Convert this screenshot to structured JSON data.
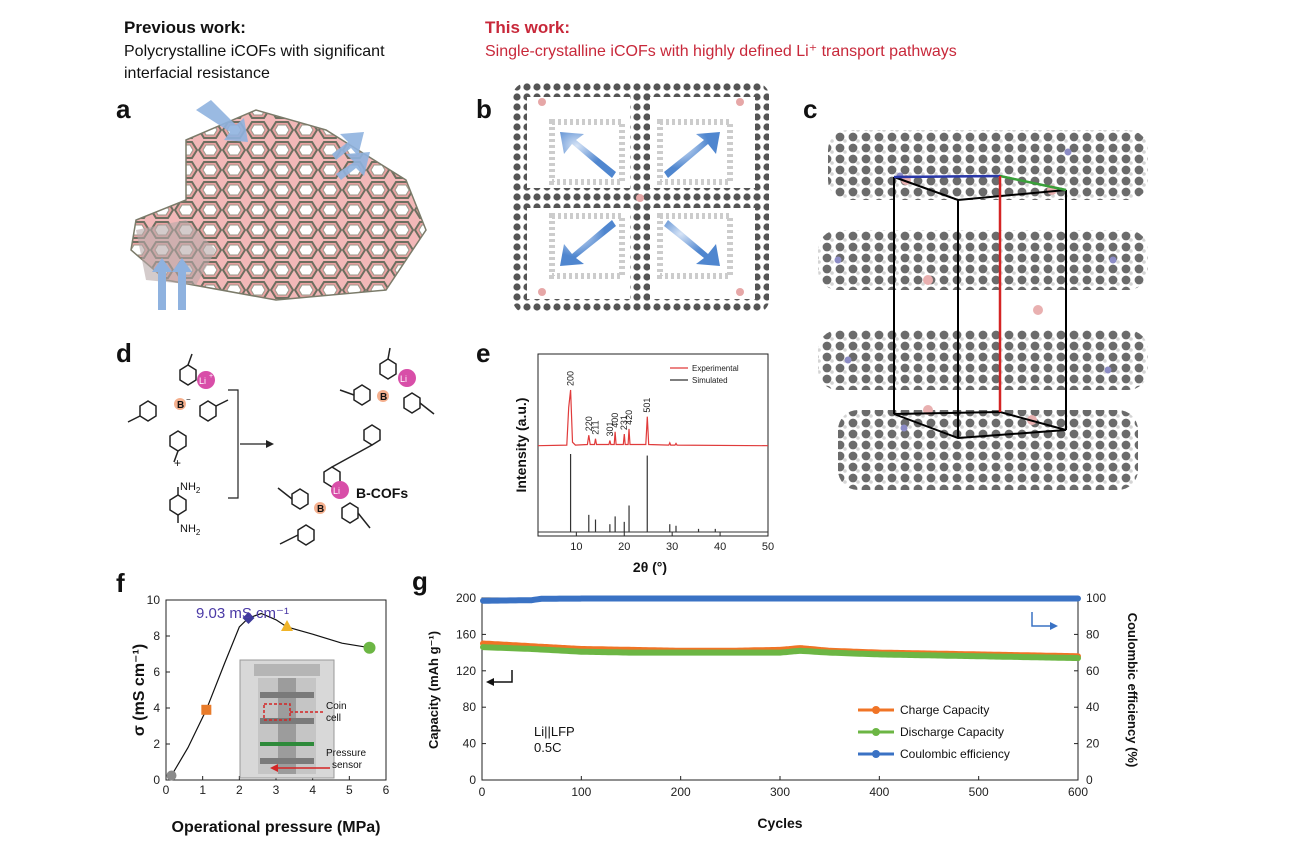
{
  "header": {
    "previous_title": "Previous work:",
    "previous_line1": "Polycrystalline iCOFs with significant",
    "previous_line2": "interfacial resistance",
    "this_title": "This work:",
    "this_desc": "Single-crystalline iCOFs with highly defined Li⁺ transport pathways"
  },
  "panel_labels": {
    "a": "a",
    "b": "b",
    "c": "c",
    "d": "d",
    "e": "e",
    "f": "f",
    "g": "g"
  },
  "panel_d": {
    "li": "Li",
    "li_sup": "+",
    "boron": "B",
    "boron_sup": "−",
    "plus": "+",
    "nh2": "NH",
    "nh2_sub": "2",
    "product": "B-COFs"
  },
  "colors": {
    "experimental": "#e03b3b",
    "simulated": "#333333",
    "charge": "#f07426",
    "discharge": "#6cb644",
    "ce": "#3a72c4",
    "peak_marker": "#3e3b9a",
    "peak_text": "#4b3aa6",
    "square_marker": "#e87b2a",
    "triangle_marker": "#f0b428",
    "arrow_red": "#d42424"
  },
  "chart_data": [
    {
      "id": "e",
      "type": "line",
      "xlabel": "2θ (°)",
      "ylabel": "Intensity (a.u.)",
      "xlim": [
        2,
        50
      ],
      "xticks": [
        10,
        20,
        30,
        40,
        50
      ],
      "legend": [
        "Experimental",
        "Simulated"
      ],
      "series": [
        {
          "name": "Experimental",
          "x": [
            2,
            8.0,
            8.4,
            8.8,
            9.2,
            9.8,
            12.3,
            12.6,
            12.9,
            13.8,
            14.0,
            14.2,
            16.8,
            17.0,
            17.2,
            17.9,
            18.1,
            18.3,
            19.8,
            20.0,
            20.2,
            20.8,
            21.0,
            21.2,
            24.5,
            24.8,
            25.1,
            29.3,
            29.5,
            29.7,
            30.6,
            30.8,
            31.0,
            50
          ],
          "y": [
            0.04,
            0.05,
            0.7,
            1.0,
            0.1,
            0.05,
            0.06,
            0.22,
            0.06,
            0.06,
            0.16,
            0.06,
            0.06,
            0.13,
            0.06,
            0.06,
            0.28,
            0.06,
            0.06,
            0.24,
            0.06,
            0.06,
            0.33,
            0.06,
            0.06,
            0.54,
            0.06,
            0.05,
            0.09,
            0.05,
            0.05,
            0.08,
            0.05,
            0.04
          ]
        },
        {
          "name": "Simulated",
          "peaks": [
            {
              "x": 8.8,
              "y": 1.0
            },
            {
              "x": 12.6,
              "y": 0.22
            },
            {
              "x": 14.0,
              "y": 0.16
            },
            {
              "x": 17.0,
              "y": 0.1
            },
            {
              "x": 18.1,
              "y": 0.2
            },
            {
              "x": 20.0,
              "y": 0.13
            },
            {
              "x": 21.0,
              "y": 0.34
            },
            {
              "x": 24.8,
              "y": 0.98
            },
            {
              "x": 29.5,
              "y": 0.1
            },
            {
              "x": 30.8,
              "y": 0.08
            },
            {
              "x": 35.5,
              "y": 0.04
            },
            {
              "x": 39.0,
              "y": 0.04
            }
          ]
        }
      ],
      "annotations": [
        {
          "label": "200",
          "x": 8.8
        },
        {
          "label": "220",
          "x": 12.6
        },
        {
          "label": "211",
          "x": 14.0
        },
        {
          "label": "301",
          "x": 17.0
        },
        {
          "label": "400",
          "x": 18.1
        },
        {
          "label": "231",
          "x": 20.0
        },
        {
          "label": "420",
          "x": 21.0
        },
        {
          "label": "501",
          "x": 24.8
        }
      ]
    },
    {
      "id": "f",
      "type": "line",
      "xlabel": "Operational pressure (MPa)",
      "ylabel": "σ (mS cm⁻¹)",
      "xlim": [
        0,
        6
      ],
      "ylim": [
        0,
        10
      ],
      "xticks": [
        0,
        1,
        2,
        3,
        4,
        5,
        6
      ],
      "yticks": [
        0,
        2,
        4,
        6,
        8,
        10
      ],
      "points": [
        {
          "x": 0.15,
          "y": 0.25,
          "marker": "circle-gray"
        },
        {
          "x": 1.1,
          "y": 3.9,
          "marker": "square-orange"
        },
        {
          "x": 2.25,
          "y": 9.0,
          "marker": "diamond-purple"
        },
        {
          "x": 3.3,
          "y": 8.5,
          "marker": "triangle-yellow"
        },
        {
          "x": 5.55,
          "y": 7.35,
          "marker": "circle-green"
        }
      ],
      "curve": [
        [
          0.15,
          0.25
        ],
        [
          0.6,
          1.8
        ],
        [
          1.1,
          3.9
        ],
        [
          1.6,
          6.5
        ],
        [
          2.0,
          8.5
        ],
        [
          2.25,
          9.0
        ],
        [
          2.6,
          9.25
        ],
        [
          3.0,
          8.9
        ],
        [
          3.3,
          8.5
        ],
        [
          4.0,
          8.1
        ],
        [
          4.8,
          7.6
        ],
        [
          5.55,
          7.35
        ]
      ],
      "peak_annotation": "9.03 mS cm⁻¹",
      "inset_labels": [
        "Coin",
        "cell",
        "Pressure",
        "sensor"
      ]
    },
    {
      "id": "g",
      "type": "scatter",
      "xlabel": "Cycles",
      "ylabel": "Capacity (mAh g⁻¹)",
      "y2label": "Coulombic efficiency (%)",
      "xlim": [
        0,
        600
      ],
      "ylim": [
        0,
        200
      ],
      "y2lim": [
        0,
        100
      ],
      "xticks": [
        0,
        100,
        200,
        300,
        400,
        500,
        600
      ],
      "yticks": [
        0,
        40,
        80,
        120,
        160,
        200
      ],
      "y2ticks": [
        0,
        20,
        40,
        60,
        80,
        100
      ],
      "note_line1": "Li||LFP",
      "note_line2": "0.5C",
      "series": [
        {
          "name": "Charge Capacity",
          "axis": "left",
          "x": [
            1,
            50,
            100,
            150,
            200,
            250,
            300,
            320,
            350,
            400,
            450,
            500,
            550,
            600
          ],
          "values": [
            150,
            147,
            144,
            143,
            142,
            142,
            143,
            145,
            142,
            140,
            139,
            138,
            137,
            136
          ]
        },
        {
          "name": "Discharge Capacity",
          "axis": "left",
          "x": [
            1,
            50,
            100,
            150,
            200,
            250,
            300,
            320,
            350,
            400,
            450,
            500,
            550,
            600
          ],
          "values": [
            146,
            144,
            141,
            140,
            140,
            140,
            140,
            142,
            140,
            138,
            137,
            136,
            135,
            134
          ]
        },
        {
          "name": "Coulombic efficiency",
          "axis": "right",
          "x": [
            1,
            50,
            60,
            100,
            200,
            300,
            400,
            500,
            600
          ],
          "values": [
            98.5,
            98.8,
            99.6,
            99.7,
            99.7,
            99.7,
            99.7,
            99.7,
            99.7
          ]
        }
      ]
    }
  ]
}
